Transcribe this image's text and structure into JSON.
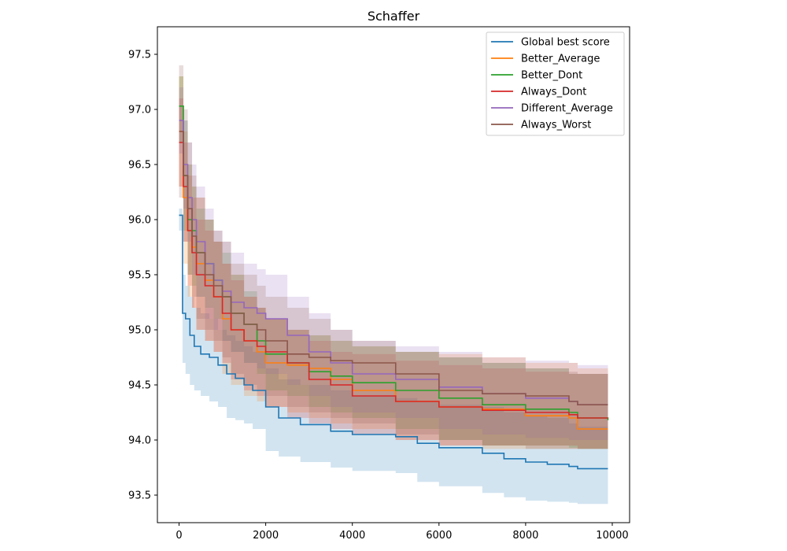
{
  "chart_data": {
    "type": "line",
    "title": "Schaffer",
    "xlabel": "",
    "ylabel": "",
    "xlim": [
      -500,
      10400
    ],
    "ylim": [
      93.25,
      97.75
    ],
    "xticks": [
      0,
      2000,
      4000,
      6000,
      8000,
      10000
    ],
    "xtick_labels": [
      "0",
      "2000",
      "4000",
      "6000",
      "8000",
      "10000"
    ],
    "yticks": [
      93.5,
      94.0,
      94.5,
      95.0,
      95.5,
      96.0,
      96.5,
      97.0,
      97.5
    ],
    "ytick_labels": [
      "93.5",
      "94.0",
      "94.5",
      "95.0",
      "95.5",
      "96.0",
      "96.5",
      "97.0",
      "97.5"
    ],
    "grid": false,
    "legend_position": "top-right",
    "band_opacity": 0.2,
    "series": [
      {
        "name": "Global best score",
        "color": "#1f77b4",
        "x": [
          0,
          80,
          150,
          250,
          350,
          500,
          700,
          900,
          1100,
          1300,
          1500,
          1700,
          2000,
          2300,
          2800,
          3500,
          4000,
          5000,
          5500,
          6000,
          7000,
          7500,
          8000,
          8500,
          9000,
          9200,
          9900
        ],
        "values": [
          96.04,
          95.15,
          95.1,
          94.95,
          94.85,
          94.78,
          94.75,
          94.68,
          94.6,
          94.56,
          94.5,
          94.45,
          94.3,
          94.2,
          94.14,
          94.08,
          94.05,
          94.03,
          93.97,
          93.93,
          93.88,
          93.83,
          93.8,
          93.78,
          93.76,
          93.74,
          93.74
        ],
        "upper": [
          96.1,
          95.5,
          95.4,
          95.3,
          95.2,
          95.15,
          95.1,
          95.0,
          94.95,
          94.9,
          94.85,
          94.8,
          94.65,
          94.55,
          94.5,
          94.45,
          94.4,
          94.38,
          94.35,
          94.32,
          94.3,
          94.25,
          94.22,
          94.2,
          94.15,
          94.12,
          94.12
        ],
        "lower": [
          95.9,
          94.7,
          94.6,
          94.5,
          94.45,
          94.4,
          94.35,
          94.3,
          94.2,
          94.18,
          94.15,
          94.1,
          93.9,
          93.85,
          93.8,
          93.75,
          93.72,
          93.7,
          93.62,
          93.58,
          93.52,
          93.48,
          93.45,
          93.44,
          93.43,
          93.42,
          93.42
        ]
      },
      {
        "name": "Better_Average",
        "color": "#ff7f0e",
        "x": [
          0,
          100,
          200,
          300,
          400,
          600,
          800,
          1000,
          1200,
          1500,
          1800,
          2000,
          2500,
          3000,
          3500,
          4000,
          5000,
          6000,
          7000,
          8000,
          9000,
          9200,
          9900
        ],
        "values": [
          96.8,
          96.2,
          95.9,
          95.75,
          95.6,
          95.45,
          95.3,
          95.1,
          95.0,
          94.9,
          94.8,
          94.7,
          94.68,
          94.65,
          94.55,
          94.45,
          94.35,
          94.3,
          94.28,
          94.22,
          94.2,
          94.1,
          94.1
        ],
        "upper": [
          97.3,
          96.8,
          96.5,
          96.3,
          96.2,
          96.0,
          95.8,
          95.6,
          95.5,
          95.3,
          95.2,
          95.1,
          95.0,
          94.95,
          94.9,
          94.85,
          94.8,
          94.78,
          94.75,
          94.7,
          94.7,
          94.65,
          94.65
        ],
        "lower": [
          96.3,
          95.6,
          95.3,
          95.2,
          95.0,
          94.9,
          94.8,
          94.6,
          94.5,
          94.4,
          94.35,
          94.3,
          94.25,
          94.2,
          94.15,
          94.1,
          94.0,
          93.95,
          93.92,
          93.92,
          93.92,
          93.92,
          93.92
        ]
      },
      {
        "name": "Better_Dont",
        "color": "#2ca02c",
        "x": [
          0,
          100,
          200,
          300,
          400,
          600,
          800,
          1000,
          1200,
          1500,
          1800,
          2000,
          2500,
          3000,
          3500,
          4000,
          5000,
          6000,
          7000,
          8000,
          9000,
          9200,
          9900
        ],
        "values": [
          97.03,
          96.4,
          96.0,
          95.9,
          95.7,
          95.6,
          95.45,
          95.3,
          95.15,
          95.05,
          94.9,
          94.78,
          94.7,
          94.62,
          94.58,
          94.52,
          94.45,
          94.38,
          94.32,
          94.28,
          94.25,
          94.2,
          94.18
        ],
        "upper": [
          97.3,
          96.9,
          96.5,
          96.3,
          96.1,
          96.0,
          95.8,
          95.7,
          95.5,
          95.35,
          95.2,
          95.1,
          95.0,
          94.95,
          94.9,
          94.85,
          94.8,
          94.75,
          94.7,
          94.65,
          94.6,
          94.6,
          94.58
        ],
        "lower": [
          96.7,
          95.9,
          95.5,
          95.4,
          95.3,
          95.2,
          95.1,
          94.9,
          94.8,
          94.7,
          94.6,
          94.45,
          94.4,
          94.3,
          94.25,
          94.2,
          94.1,
          94.0,
          93.95,
          93.95,
          93.93,
          93.92,
          93.92
        ]
      },
      {
        "name": "Always_Dont",
        "color": "#d62728",
        "x": [
          0,
          100,
          200,
          300,
          400,
          600,
          800,
          1000,
          1200,
          1500,
          1800,
          2000,
          2500,
          3000,
          3500,
          4000,
          5000,
          6000,
          7000,
          8000,
          9000,
          9200,
          9900
        ],
        "values": [
          96.7,
          96.3,
          95.9,
          95.7,
          95.5,
          95.4,
          95.3,
          95.15,
          95.0,
          94.9,
          94.85,
          94.8,
          94.7,
          94.55,
          94.5,
          94.4,
          94.35,
          94.3,
          94.27,
          94.25,
          94.23,
          94.2,
          94.2
        ],
        "upper": [
          97.1,
          96.7,
          96.4,
          96.2,
          96.0,
          95.9,
          95.8,
          95.6,
          95.45,
          95.3,
          95.2,
          95.1,
          95.0,
          94.9,
          94.8,
          94.78,
          94.72,
          94.68,
          94.65,
          94.62,
          94.6,
          94.6,
          94.6
        ],
        "lower": [
          96.3,
          95.8,
          95.4,
          95.2,
          95.0,
          94.9,
          94.8,
          94.7,
          94.55,
          94.45,
          94.4,
          94.3,
          94.2,
          94.15,
          94.1,
          94.05,
          94.0,
          93.95,
          93.95,
          93.95,
          93.95,
          93.92,
          93.92
        ]
      },
      {
        "name": "Different_Average",
        "color": "#9467bd",
        "x": [
          0,
          100,
          200,
          300,
          400,
          600,
          800,
          1000,
          1200,
          1500,
          1800,
          2000,
          2500,
          3000,
          3500,
          4000,
          5000,
          6000,
          7000,
          8000,
          9000,
          9200,
          9900
        ],
        "values": [
          96.9,
          96.5,
          96.2,
          96.0,
          95.8,
          95.6,
          95.45,
          95.35,
          95.25,
          95.2,
          95.15,
          95.1,
          94.95,
          94.8,
          94.7,
          94.6,
          94.55,
          94.48,
          94.42,
          94.38,
          94.35,
          94.32,
          94.32
        ],
        "upper": [
          97.2,
          96.9,
          96.7,
          96.5,
          96.3,
          96.1,
          95.9,
          95.8,
          95.7,
          95.6,
          95.55,
          95.5,
          95.3,
          95.15,
          95.0,
          94.9,
          94.85,
          94.8,
          94.75,
          94.72,
          94.7,
          94.68,
          94.68
        ],
        "lower": [
          96.6,
          96.1,
          95.8,
          95.5,
          95.3,
          95.1,
          95.0,
          94.9,
          94.8,
          94.7,
          94.65,
          94.6,
          94.5,
          94.4,
          94.3,
          94.25,
          94.2,
          94.1,
          94.05,
          94.02,
          94.0,
          94.0,
          94.0
        ]
      },
      {
        "name": "Always_Worst",
        "color": "#8c564b",
        "x": [
          0,
          100,
          200,
          300,
          400,
          600,
          800,
          1000,
          1200,
          1500,
          1800,
          2000,
          2500,
          3000,
          3500,
          4000,
          5000,
          6000,
          7000,
          8000,
          9000,
          9200,
          9900
        ],
        "values": [
          96.8,
          96.4,
          96.1,
          95.85,
          95.7,
          95.5,
          95.4,
          95.3,
          95.15,
          95.05,
          95.0,
          94.9,
          94.78,
          94.75,
          94.72,
          94.7,
          94.6,
          94.45,
          94.42,
          94.4,
          94.35,
          94.32,
          94.32
        ],
        "upper": [
          97.4,
          97.0,
          96.7,
          96.4,
          96.2,
          96.0,
          95.9,
          95.8,
          95.6,
          95.5,
          95.4,
          95.3,
          95.2,
          95.1,
          95.0,
          94.9,
          94.8,
          94.75,
          94.7,
          94.65,
          94.62,
          94.6,
          94.6
        ],
        "lower": [
          96.2,
          95.8,
          95.5,
          95.3,
          95.1,
          95.0,
          94.9,
          94.75,
          94.6,
          94.5,
          94.45,
          94.4,
          94.3,
          94.25,
          94.2,
          94.15,
          94.05,
          94.0,
          93.95,
          93.92,
          93.92,
          93.92,
          93.92
        ]
      }
    ]
  }
}
